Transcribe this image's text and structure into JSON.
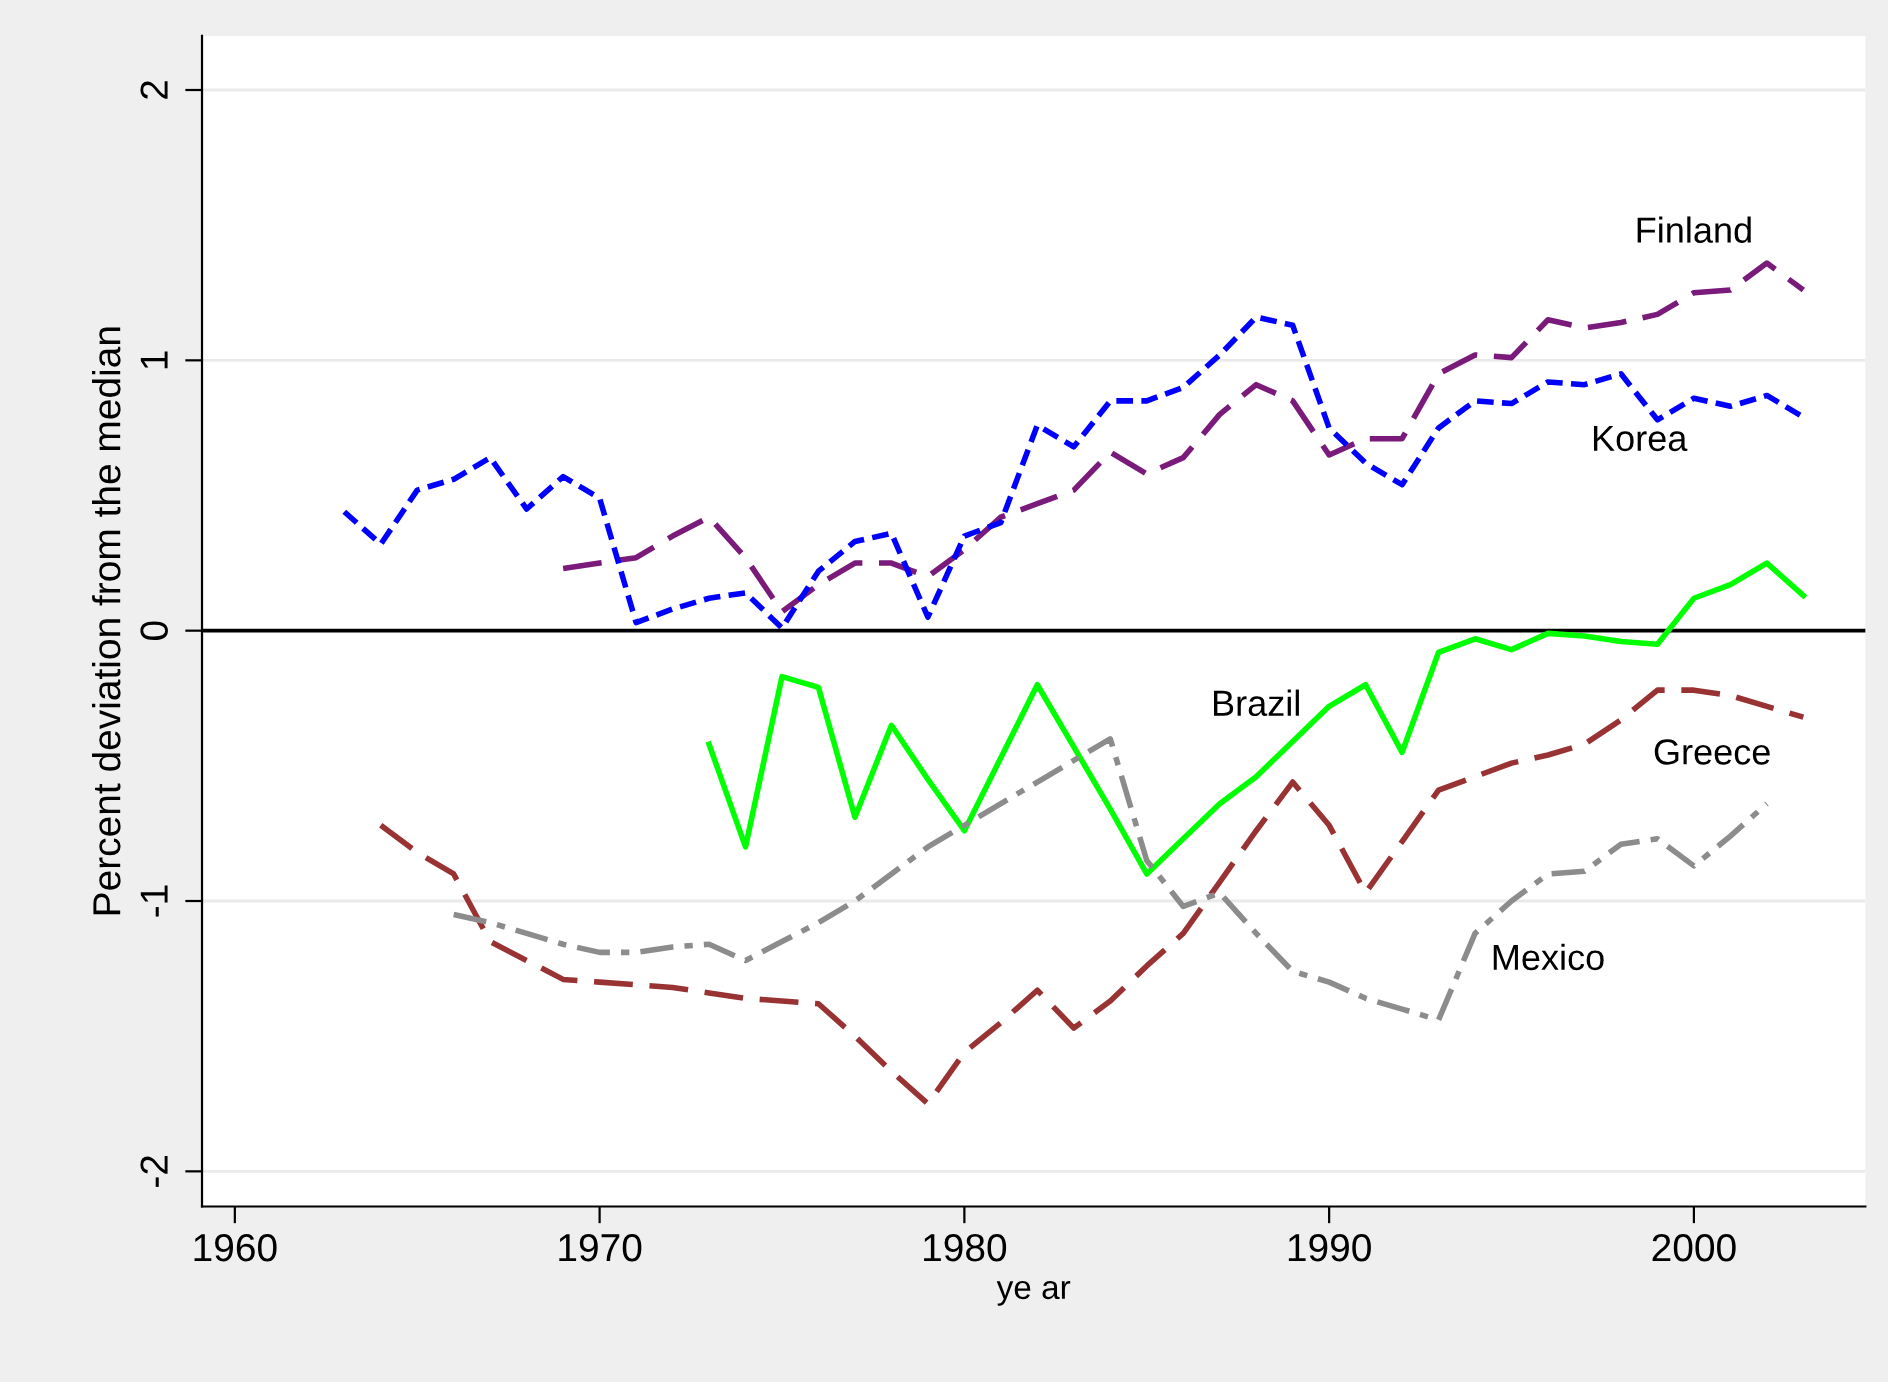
{
  "chart_data": {
    "type": "line",
    "xlabel": "ye ar",
    "ylabel": "Percent deviation from the median",
    "x": [
      1963,
      1964,
      1965,
      1966,
      1967,
      1968,
      1969,
      1970,
      1971,
      1972,
      1973,
      1974,
      1975,
      1976,
      1977,
      1978,
      1979,
      1980,
      1981,
      1982,
      1983,
      1984,
      1985,
      1986,
      1987,
      1988,
      1989,
      1990,
      1991,
      1992,
      1993,
      1994,
      1995,
      1996,
      1997,
      1998,
      1999,
      2000,
      2001,
      2002,
      2003
    ],
    "series": [
      {
        "name": "Finland",
        "color": "#7a1a7a",
        "line_style": "dashed",
        "values": [
          null,
          null,
          null,
          null,
          null,
          null,
          0.23,
          0.25,
          0.27,
          0.35,
          0.42,
          0.27,
          0.07,
          0.17,
          0.25,
          0.25,
          0.2,
          0.3,
          0.42,
          0.47,
          0.52,
          0.66,
          0.58,
          0.64,
          0.8,
          0.91,
          0.85,
          0.65,
          0.71,
          0.71,
          0.95,
          1.02,
          1.01,
          1.15,
          1.12,
          1.14,
          1.17,
          1.25,
          1.26,
          1.36,
          1.26
        ]
      },
      {
        "name": "Korea",
        "color": "#0000ff",
        "line_style": "dotted",
        "values": [
          0.44,
          0.32,
          0.52,
          0.56,
          0.64,
          0.45,
          0.57,
          0.49,
          0.03,
          0.08,
          0.12,
          0.14,
          0.01,
          0.22,
          0.33,
          0.36,
          0.05,
          0.35,
          0.4,
          0.76,
          0.68,
          0.85,
          0.85,
          0.9,
          1.02,
          1.16,
          1.13,
          0.75,
          0.62,
          0.54,
          0.75,
          0.85,
          0.84,
          0.92,
          0.91,
          0.95,
          0.78,
          0.86,
          0.83,
          0.87,
          0.79
        ]
      },
      {
        "name": "Brazil",
        "color": "#00ff00",
        "line_style": "solid",
        "values": [
          null,
          null,
          null,
          null,
          null,
          null,
          null,
          null,
          null,
          null,
          -0.42,
          -0.8,
          -0.17,
          -0.21,
          -0.69,
          -0.35,
          -0.55,
          -0.74,
          -0.47,
          -0.2,
          -0.43,
          -0.66,
          -0.9,
          -0.77,
          -0.64,
          -0.54,
          -0.41,
          -0.28,
          -0.2,
          -0.45,
          -0.08,
          -0.03,
          -0.07,
          -0.01,
          -0.02,
          -0.04,
          -0.05,
          0.12,
          0.17,
          0.25,
          0.13
        ]
      },
      {
        "name": "Greece",
        "color": "#993333",
        "line_style": "dashed",
        "values": [
          null,
          -0.72,
          -0.82,
          -0.9,
          -1.15,
          -1.22,
          -1.29,
          -1.3,
          -1.31,
          -1.32,
          -1.34,
          -1.36,
          -1.37,
          -1.38,
          -1.5,
          -1.63,
          -1.75,
          -1.56,
          -1.45,
          -1.33,
          -1.47,
          -1.37,
          -1.24,
          -1.12,
          -0.93,
          -0.74,
          -0.56,
          -0.72,
          -0.97,
          -0.78,
          -0.59,
          -0.54,
          -0.49,
          -0.46,
          -0.42,
          -0.33,
          -0.22,
          -0.22,
          -0.24,
          -0.28,
          -0.32
        ]
      },
      {
        "name": "Mexico",
        "color": "#8c8c8c",
        "line_style": "dashdot",
        "values": [
          null,
          null,
          null,
          -1.05,
          -1.08,
          -1.12,
          -1.16,
          -1.19,
          -1.19,
          -1.17,
          -1.16,
          -1.22,
          -1.15,
          -1.08,
          -1.0,
          -0.9,
          -0.8,
          -0.72,
          -0.64,
          -0.56,
          -0.48,
          -0.4,
          -0.85,
          -1.02,
          -0.97,
          -1.12,
          -1.26,
          -1.3,
          -1.36,
          -1.4,
          -1.44,
          -1.12,
          -1.0,
          -0.9,
          -0.89,
          -0.79,
          -0.77,
          -0.87,
          -0.76,
          -0.64,
          null
        ]
      }
    ],
    "xlim": [
      1959.1,
      2004.7
    ],
    "xticks": [
      1960,
      1970,
      1980,
      1990,
      2000
    ],
    "ylim": [
      -2.13,
      2.2
    ],
    "yticks": [
      -2,
      -1,
      0,
      1,
      2
    ],
    "ref_lines": [
      {
        "axis": "y",
        "value": 0,
        "color": "#000000"
      }
    ],
    "grid": "y",
    "legend": false,
    "marker": "none"
  }
}
